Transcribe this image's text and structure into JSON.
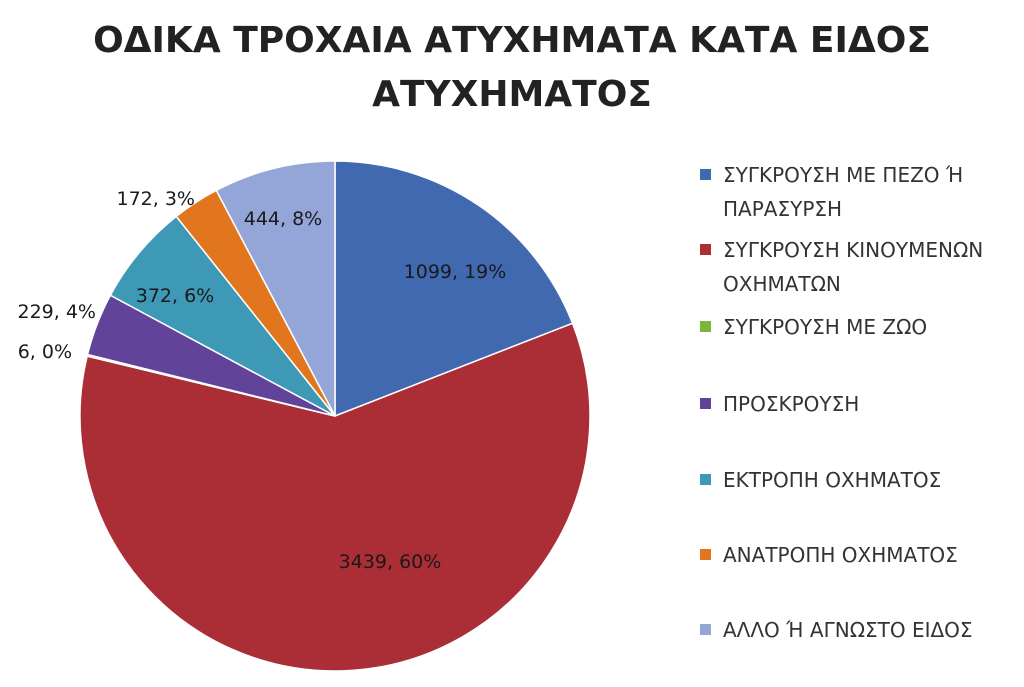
{
  "chart_data": {
    "type": "pie",
    "title_lines": [
      "ΟΔΙΚΑ ΤΡΟΧΑΙΑ ΑΤΥΧΗΜΑΤΑ ΚΑΤΑ ΕΙΔΟΣ",
      "ΑΤΥΧΗΜΑΤΟΣ"
    ],
    "legend_position": "right",
    "slices": [
      {
        "name": "ΣΥΓΚΡΟΥΣΗ ΜΕ ΠΕΖΟ Ή\nΠΑΡΑΣΥΡΣΗ",
        "value": 1099,
        "label": "1099, 19%",
        "color": "#4169b0"
      },
      {
        "name": "ΣΥΓΚΡΟΥΣΗ ΚΙΝΟΥΜΕΝΩΝ\nΟΧΗΜΑΤΩΝ",
        "value": 3439,
        "label": "3439, 60%",
        "color": "#ab2d35"
      },
      {
        "name": "ΣΥΓΚΡΟΥΣΗ ΜΕ ΖΩΟ",
        "value": 6,
        "label": "6, 0%",
        "color": "#7cb43c"
      },
      {
        "name": "ΠΡΟΣΚΡΟΥΣΗ",
        "value": 229,
        "label": "229, 4%",
        "color": "#62439a"
      },
      {
        "name": "ΕΚΤΡΟΠΗ ΟΧΗΜΑΤΟΣ",
        "value": 372,
        "label": "372, 6%",
        "color": "#3d99b5"
      },
      {
        "name": "ΑΝΑΤΡΟΠΗ ΟΧΗΜΑΤΟΣ",
        "value": 172,
        "label": "172, 3%",
        "color": "#e2761f"
      },
      {
        "name": "ΑΛΛΟ Ή ΑΓΝΩΣΤΟ ΕΙΔΟΣ",
        "value": 444,
        "label": "444, 8%",
        "color": "#93a6d7"
      }
    ]
  }
}
